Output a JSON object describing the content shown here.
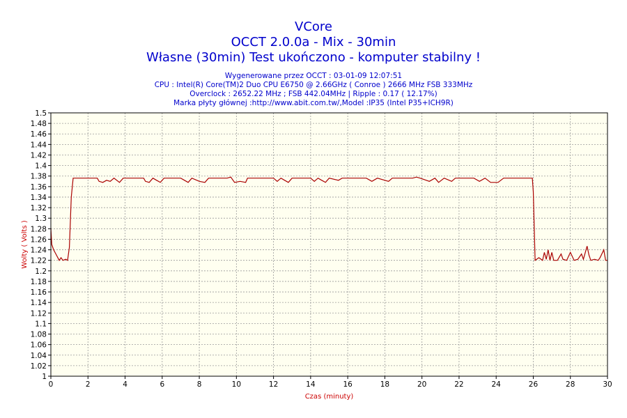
{
  "chart_data": {
    "type": "line",
    "title": "VCore",
    "subtitle": "OCCT 2.0.0a - Mix - 30min",
    "subtitle2": "Własne (30min) Test ukończono - komputer stabilny !",
    "info_lines": [
      "Wygenerowane przez OCCT : 03-01-09 12:07:51",
      "CPU : Intel(R) Core(TM)2 Duo CPU E6750 @ 2.66GHz ( Conroe ) 2666 MHz FSB 333MHz",
      "Overclock : 2652.22 MHz ; FSB 442.04MHz | Ripple : 0.17 ( 12.17%)",
      "Marka płyty głównej :http://www.abit.com.tw/,Model :IP35 (Intel P35+ICH9R)"
    ],
    "xlabel": "Czas (minuty)",
    "ylabel": "Wolty ( Volts )",
    "xlim": [
      0,
      30
    ],
    "ylim": [
      1,
      1.5
    ],
    "x_ticks": [
      "0",
      "2",
      "4",
      "6",
      "8",
      "10",
      "12",
      "14",
      "16",
      "18",
      "20",
      "22",
      "24",
      "26",
      "28",
      "30"
    ],
    "y_ticks": [
      "1",
      "1.02",
      "1.04",
      "1.06",
      "1.08",
      "1.1",
      "1.12",
      "1.14",
      "1.16",
      "1.18",
      "1.2",
      "1.22",
      "1.24",
      "1.26",
      "1.28",
      "1.3",
      "1.32",
      "1.34",
      "1.36",
      "1.38",
      "1.4",
      "1.42",
      "1.44",
      "1.46",
      "1.48",
      "1.5"
    ],
    "grid": true,
    "colors": {
      "line": "#aa0000",
      "plot_bg": "#fffff0",
      "grid": "#999999",
      "text": "#0000cc",
      "axis_label": "#cc0000"
    },
    "series": [
      {
        "points": [
          [
            0.0,
            1.28
          ],
          [
            0.05,
            1.25
          ],
          [
            0.15,
            1.24
          ],
          [
            0.3,
            1.23
          ],
          [
            0.45,
            1.22
          ],
          [
            0.55,
            1.225
          ],
          [
            0.65,
            1.22
          ],
          [
            0.8,
            1.222
          ],
          [
            0.9,
            1.22
          ],
          [
            1.0,
            1.245
          ],
          [
            1.1,
            1.34
          ],
          [
            1.2,
            1.376
          ],
          [
            1.5,
            1.376
          ],
          [
            2.0,
            1.376
          ],
          [
            2.5,
            1.376
          ],
          [
            2.6,
            1.37
          ],
          [
            2.8,
            1.368
          ],
          [
            3.0,
            1.372
          ],
          [
            3.2,
            1.37
          ],
          [
            3.4,
            1.376
          ],
          [
            3.7,
            1.368
          ],
          [
            3.9,
            1.376
          ],
          [
            4.5,
            1.376
          ],
          [
            5.0,
            1.376
          ],
          [
            5.1,
            1.37
          ],
          [
            5.3,
            1.368
          ],
          [
            5.5,
            1.376
          ],
          [
            5.7,
            1.372
          ],
          [
            5.9,
            1.368
          ],
          [
            6.1,
            1.376
          ],
          [
            7.0,
            1.376
          ],
          [
            7.2,
            1.372
          ],
          [
            7.4,
            1.368
          ],
          [
            7.6,
            1.376
          ],
          [
            8.0,
            1.37
          ],
          [
            8.3,
            1.368
          ],
          [
            8.5,
            1.376
          ],
          [
            9.5,
            1.376
          ],
          [
            9.7,
            1.378
          ],
          [
            9.9,
            1.368
          ],
          [
            10.2,
            1.37
          ],
          [
            10.5,
            1.368
          ],
          [
            10.6,
            1.376
          ],
          [
            12.0,
            1.376
          ],
          [
            12.2,
            1.37
          ],
          [
            12.4,
            1.376
          ],
          [
            12.6,
            1.372
          ],
          [
            12.8,
            1.368
          ],
          [
            13.0,
            1.376
          ],
          [
            14.0,
            1.376
          ],
          [
            14.2,
            1.37
          ],
          [
            14.4,
            1.376
          ],
          [
            14.6,
            1.372
          ],
          [
            14.8,
            1.368
          ],
          [
            15.0,
            1.376
          ],
          [
            15.5,
            1.372
          ],
          [
            15.7,
            1.376
          ],
          [
            16.5,
            1.376
          ],
          [
            17.0,
            1.376
          ],
          [
            17.3,
            1.37
          ],
          [
            17.6,
            1.376
          ],
          [
            18.0,
            1.372
          ],
          [
            18.2,
            1.37
          ],
          [
            18.4,
            1.376
          ],
          [
            19.5,
            1.376
          ],
          [
            19.7,
            1.378
          ],
          [
            19.9,
            1.376
          ],
          [
            20.4,
            1.37
          ],
          [
            20.7,
            1.376
          ],
          [
            20.9,
            1.368
          ],
          [
            21.2,
            1.376
          ],
          [
            21.6,
            1.37
          ],
          [
            21.8,
            1.376
          ],
          [
            22.8,
            1.376
          ],
          [
            23.1,
            1.37
          ],
          [
            23.4,
            1.376
          ],
          [
            23.7,
            1.368
          ],
          [
            24.1,
            1.368
          ],
          [
            24.4,
            1.376
          ],
          [
            25.5,
            1.376
          ],
          [
            25.95,
            1.376
          ],
          [
            26.0,
            1.35
          ],
          [
            26.1,
            1.22
          ],
          [
            26.3,
            1.225
          ],
          [
            26.5,
            1.22
          ],
          [
            26.6,
            1.235
          ],
          [
            26.7,
            1.222
          ],
          [
            26.8,
            1.24
          ],
          [
            26.9,
            1.22
          ],
          [
            27.0,
            1.235
          ],
          [
            27.1,
            1.22
          ],
          [
            27.3,
            1.22
          ],
          [
            27.5,
            1.232
          ],
          [
            27.6,
            1.222
          ],
          [
            27.8,
            1.22
          ],
          [
            28.0,
            1.235
          ],
          [
            28.2,
            1.22
          ],
          [
            28.4,
            1.222
          ],
          [
            28.6,
            1.232
          ],
          [
            28.7,
            1.222
          ],
          [
            28.9,
            1.247
          ],
          [
            29.0,
            1.23
          ],
          [
            29.1,
            1.22
          ],
          [
            29.3,
            1.222
          ],
          [
            29.5,
            1.22
          ],
          [
            29.6,
            1.225
          ],
          [
            29.8,
            1.24
          ],
          [
            29.9,
            1.22
          ],
          [
            30.0,
            1.22
          ]
        ]
      }
    ]
  }
}
